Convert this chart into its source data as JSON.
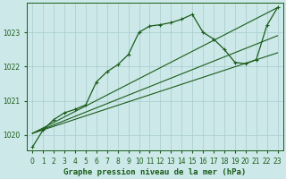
{
  "title": "Graphe pression niveau de la mer (hPa)",
  "bg_color": "#cce8e8",
  "grid_color": "#a8cccc",
  "line_color": "#1a5c1a",
  "ylim": [
    1019.55,
    1023.85
  ],
  "xlim": [
    -0.5,
    23.5
  ],
  "yticks": [
    1020,
    1021,
    1022,
    1023
  ],
  "xtick_labels": [
    "0",
    "1",
    "2",
    "3",
    "4",
    "5",
    "6",
    "7",
    "8",
    "9",
    "10",
    "11",
    "12",
    "13",
    "14",
    "15",
    "16",
    "17",
    "18",
    "19",
    "20",
    "21",
    "22",
    "23"
  ],
  "tick_fontsize": 5.5,
  "title_fontsize": 6.5,
  "straight_lines": [
    {
      "x0": 0,
      "y0": 1020.05,
      "x1": 23,
      "y1": 1023.72
    },
    {
      "x0": 0,
      "y0": 1020.05,
      "x1": 23,
      "y1": 1022.9
    },
    {
      "x0": 0,
      "y0": 1020.05,
      "x1": 23,
      "y1": 1022.4
    }
  ],
  "marked_line_x": [
    0,
    1,
    2,
    3,
    4,
    5,
    6,
    7,
    8,
    9,
    10,
    11,
    12,
    13,
    14,
    15,
    16,
    17,
    18,
    19,
    20,
    21,
    22,
    23
  ],
  "marked_line_y": [
    1019.65,
    1020.15,
    1020.45,
    1020.65,
    1020.75,
    1020.88,
    1021.55,
    1021.85,
    1022.05,
    1022.35,
    1023.0,
    1023.18,
    1023.22,
    1023.28,
    1023.38,
    1023.52,
    1023.0,
    1022.8,
    1022.5,
    1022.12,
    1022.08,
    1022.2,
    1023.2,
    1023.72
  ]
}
